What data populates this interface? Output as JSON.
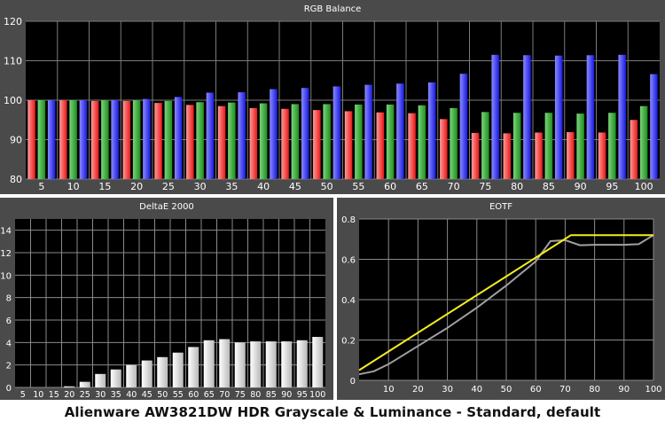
{
  "caption": "Alienware AW3821DW HDR Grayscale & Luminance - Standard, default",
  "chart_data": [
    {
      "type": "bar",
      "title": "RGB Balance",
      "categories": [
        "5",
        "10",
        "15",
        "20",
        "25",
        "30",
        "35",
        "40",
        "45",
        "50",
        "55",
        "60",
        "65",
        "70",
        "75",
        "80",
        "85",
        "90",
        "95",
        "100"
      ],
      "ylim": [
        80,
        120
      ],
      "yticks": [
        "80",
        "90",
        "100",
        "110",
        "120"
      ],
      "grid": true,
      "series": [
        {
          "color": "#ff3b3b",
          "values": [
            100,
            100,
            99.8,
            99.8,
            99.3,
            98.8,
            98.5,
            98.0,
            97.8,
            97.5,
            97.2,
            96.9,
            96.7,
            95.2,
            91.7,
            91.6,
            91.8,
            91.9,
            91.8,
            95.0
          ]
        },
        {
          "color": "#2ea52e",
          "values": [
            100,
            100,
            100,
            100,
            99.8,
            99.5,
            99.4,
            99.2,
            99.0,
            99.0,
            98.9,
            98.9,
            98.7,
            98.0,
            97.0,
            96.8,
            96.8,
            96.6,
            96.8,
            98.5
          ]
        },
        {
          "color": "#2b2bef",
          "values": [
            100,
            100,
            100,
            100.3,
            100.8,
            101.9,
            102.0,
            102.8,
            103.1,
            103.5,
            103.9,
            104.2,
            104.5,
            106.7,
            111.5,
            111.4,
            111.3,
            111.4,
            111.5,
            106.6
          ]
        }
      ]
    },
    {
      "type": "bar",
      "title": "DeltaE 2000",
      "categories": [
        "5",
        "10",
        "15",
        "20",
        "25",
        "30",
        "35",
        "40",
        "45",
        "50",
        "55",
        "60",
        "65",
        "70",
        "75",
        "80",
        "85",
        "90",
        "95",
        "100"
      ],
      "values": [
        0.0,
        0.0,
        0.0,
        0.1,
        0.5,
        1.2,
        1.6,
        2.0,
        2.4,
        2.7,
        3.1,
        3.6,
        4.2,
        4.3,
        4.0,
        4.1,
        4.1,
        4.1,
        4.2,
        4.5
      ],
      "ylim": [
        0,
        15
      ],
      "yticks": [
        "0",
        "2",
        "4",
        "6",
        "8",
        "10",
        "12",
        "14"
      ],
      "grid": true
    },
    {
      "type": "line",
      "title": "EOTF",
      "xlim": [
        0,
        100
      ],
      "ylim": [
        0,
        0.8
      ],
      "xticks": [
        "10",
        "20",
        "30",
        "40",
        "50",
        "60",
        "70",
        "80",
        "90",
        "100"
      ],
      "yticks": [
        "0",
        "0.2",
        "0.4",
        "0.6",
        "0.8"
      ],
      "grid": true,
      "series": [
        {
          "color": "#a0a0a0",
          "x": [
            0,
            5,
            10,
            20,
            30,
            40,
            50,
            60,
            65,
            70,
            75,
            80,
            90,
            95,
            100
          ],
          "y": [
            0.03,
            0.045,
            0.08,
            0.17,
            0.26,
            0.36,
            0.47,
            0.59,
            0.69,
            0.695,
            0.67,
            0.672,
            0.672,
            0.675,
            0.72
          ]
        },
        {
          "color": "#f4ee1e",
          "x": [
            0,
            72,
            100
          ],
          "y": [
            0.05,
            0.72,
            0.72
          ]
        }
      ]
    }
  ]
}
